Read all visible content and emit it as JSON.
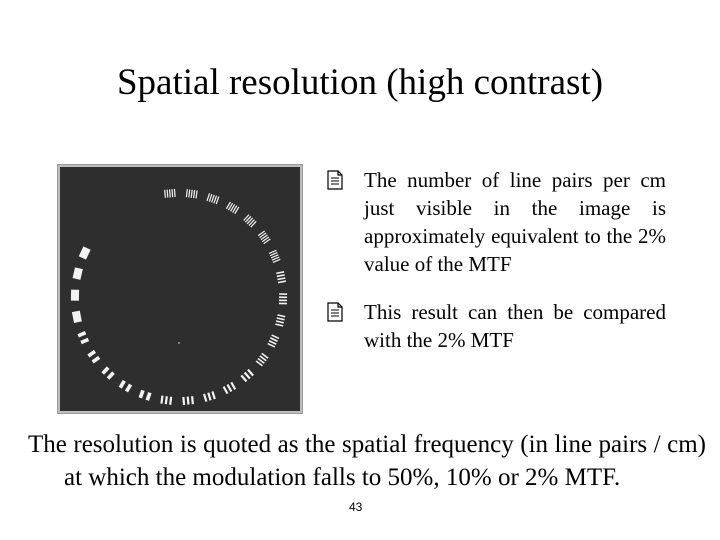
{
  "slide": {
    "title": "Spatial resolution (high contrast)",
    "bullets": [
      "The number of line pairs per cm just visible in the image is approximately equivalent to the 2% value of the MTF",
      "This result can then be compared with the 2% MTF"
    ],
    "bullet_marker_icon": "note-page-icon",
    "body_text": "The resolution is quoted as the spatial frequency (in line pairs / cm) at which the modulation falls to 50%, 10% or 2% MTF.",
    "page_number": "43"
  },
  "figure": {
    "description_icon": "line-pair-phantom-image",
    "background_color": "#2e2e2e",
    "bar_color": "#f2f2f2"
  }
}
